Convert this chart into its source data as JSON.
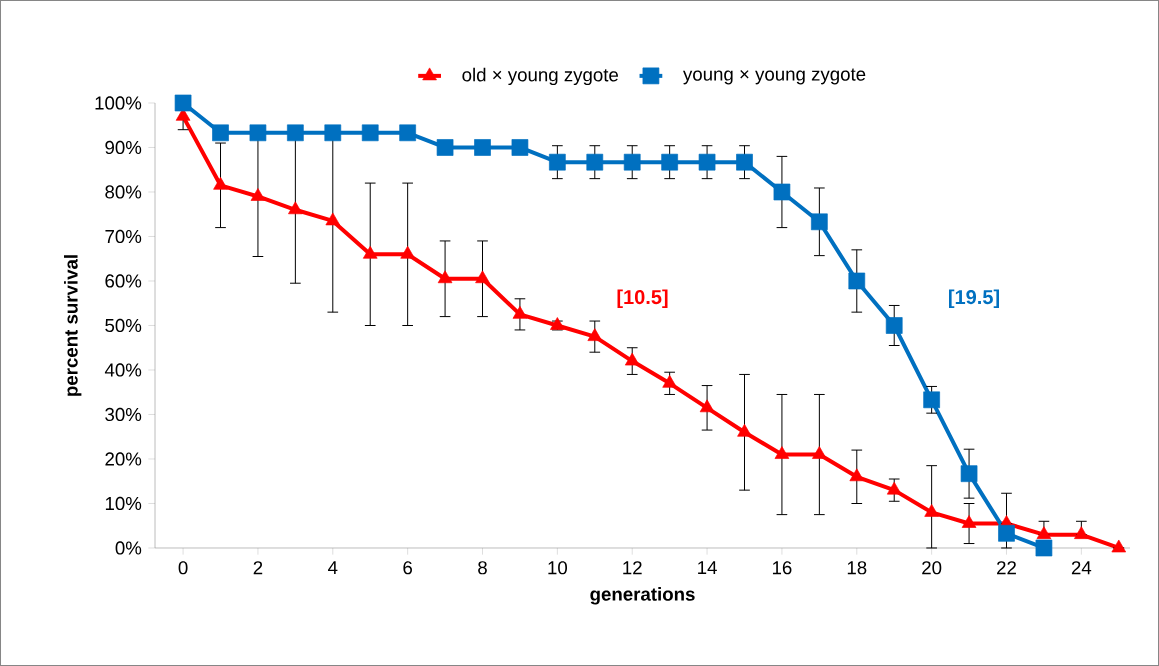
{
  "chart_data": {
    "type": "line",
    "xlabel": "generations",
    "ylabel": "percent survival",
    "xlim": [
      -0.75,
      25.3
    ],
    "xticks": [
      0,
      2,
      4,
      6,
      8,
      10,
      12,
      14,
      16,
      18,
      20,
      22,
      24
    ],
    "ylim": [
      0,
      100
    ],
    "yticks": [
      {
        "value": 0,
        "label": "0%"
      },
      {
        "value": 10,
        "label": "10%"
      },
      {
        "value": 20,
        "label": "20%"
      },
      {
        "value": 30,
        "label": "30%"
      },
      {
        "value": 40,
        "label": "40%"
      },
      {
        "value": 50,
        "label": "50%"
      },
      {
        "value": 60,
        "label": "60%"
      },
      {
        "value": 70,
        "label": "70%"
      },
      {
        "value": 80,
        "label": "80%"
      },
      {
        "value": 90,
        "label": "90%"
      },
      {
        "value": 100,
        "label": "100%"
      }
    ],
    "grid": false,
    "legend": "top",
    "line_style": "solid",
    "series": [
      {
        "name": "old × young zygote",
        "color": "#ff0000",
        "marker": "triangle",
        "x": [
          0,
          1,
          2,
          3,
          4,
          5,
          6,
          7,
          8,
          9,
          10,
          11,
          12,
          13,
          14,
          15,
          16,
          17,
          18,
          19,
          20,
          21,
          22,
          23,
          24,
          25
        ],
        "values": [
          97,
          81.5,
          79,
          76,
          73.5,
          66,
          66,
          60.5,
          60.5,
          52.5,
          50,
          47.5,
          42,
          37,
          31.5,
          26,
          21,
          21,
          16,
          13,
          8,
          5.5,
          5.5,
          3,
          3,
          0
        ],
        "errors": [
          3,
          9.5,
          13.5,
          16.5,
          20.5,
          16,
          16,
          8.5,
          8.5,
          3.5,
          1,
          3.5,
          3,
          2.5,
          5,
          13,
          13.5,
          13.5,
          6,
          2.5,
          [
            0,
            18.5
          ],
          4.5,
          null,
          [
            3,
            6
          ],
          [
            3,
            6
          ],
          null
        ]
      },
      {
        "name": "young × young zygote",
        "color": "#0070c0",
        "marker": "square",
        "x": [
          0,
          1,
          2,
          3,
          4,
          5,
          6,
          7,
          8,
          9,
          10,
          11,
          12,
          13,
          14,
          15,
          16,
          17,
          18,
          19,
          20,
          21,
          22,
          23
        ],
        "values": [
          100,
          93.3,
          93.3,
          93.3,
          93.3,
          93.3,
          93.3,
          90,
          90,
          90,
          86.7,
          86.7,
          86.7,
          86.7,
          86.7,
          86.7,
          80,
          73.3,
          60,
          50,
          33.3,
          16.7,
          3.3,
          0
        ],
        "errors": [
          null,
          null,
          null,
          null,
          null,
          null,
          null,
          null,
          null,
          null,
          3.7,
          3.7,
          3.7,
          3.7,
          3.7,
          3.7,
          8,
          7.6,
          7,
          4.5,
          3,
          5.5,
          [
            0,
            12.3
          ],
          null
        ]
      }
    ],
    "annotations": [
      "[10.5]",
      "[19.5]"
    ]
  }
}
